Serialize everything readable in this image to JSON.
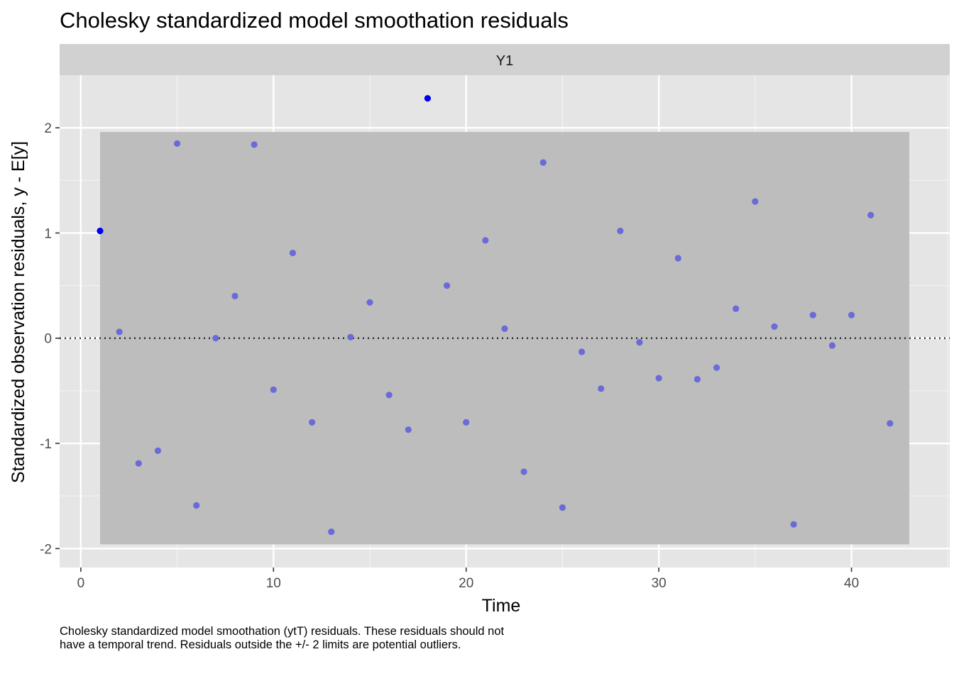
{
  "chart_data": {
    "type": "scatter",
    "title": "Cholesky standardized model smoothation residuals",
    "facet_label": "Y1",
    "xlabel": "Time",
    "ylabel": "Standardized observation residuals, y - E[y]",
    "caption": "Cholesky standardized model smoothation (ytT) residuals. These residuals should not have a temporal trend. Residuals outside the +/- 2 limits are potential outliers.",
    "xlim": [
      -1.1,
      45.1
    ],
    "ylim": [
      -2.18,
      2.5
    ],
    "x_ticks": [
      0,
      10,
      20,
      30,
      40
    ],
    "y_ticks": [
      -2,
      -1,
      0,
      1,
      2
    ],
    "x_tick_labels": [
      "0",
      "10",
      "20",
      "30",
      "40"
    ],
    "y_tick_labels": [
      "-2",
      "-1",
      "0",
      "1",
      "2"
    ],
    "band": {
      "x": [
        1,
        43
      ],
      "y": [
        -1.96,
        1.96
      ],
      "color": "#bdbdbd"
    },
    "reference_line": {
      "y": 0,
      "style": "dotted"
    },
    "grid": true,
    "colors": {
      "panel": "#e5e5e5",
      "strip": "#d1d1d1",
      "point": "#6a6ad9",
      "outlier_point": "#0000ee"
    },
    "series": [
      {
        "x": [
          1,
          2,
          3,
          4,
          5,
          6,
          7,
          8,
          9,
          10,
          11,
          12,
          13,
          14,
          15,
          16,
          17,
          18,
          19,
          20,
          21,
          22,
          23,
          24,
          25,
          26,
          27,
          28,
          29,
          30,
          31,
          32,
          33,
          34,
          35,
          36,
          37,
          38,
          39,
          40,
          41,
          42
        ],
        "y": [
          1.02,
          0.06,
          -1.19,
          -1.07,
          1.85,
          -1.59,
          0.0,
          0.4,
          1.84,
          -0.49,
          0.81,
          -0.8,
          -1.84,
          0.01,
          0.34,
          -0.54,
          -0.87,
          2.28,
          0.5,
          -0.8,
          0.93,
          0.09,
          -1.27,
          1.67,
          -1.61,
          -0.13,
          -0.48,
          1.02,
          -0.04,
          -0.38,
          0.76,
          -0.39,
          -0.28,
          0.28,
          1.3,
          0.11,
          -1.77,
          0.22,
          -0.07,
          0.22,
          1.17,
          -0.81
        ]
      }
    ],
    "highlighted_points": [
      {
        "x": 1,
        "y": 1.02
      },
      {
        "x": 18,
        "y": 2.28
      }
    ]
  }
}
